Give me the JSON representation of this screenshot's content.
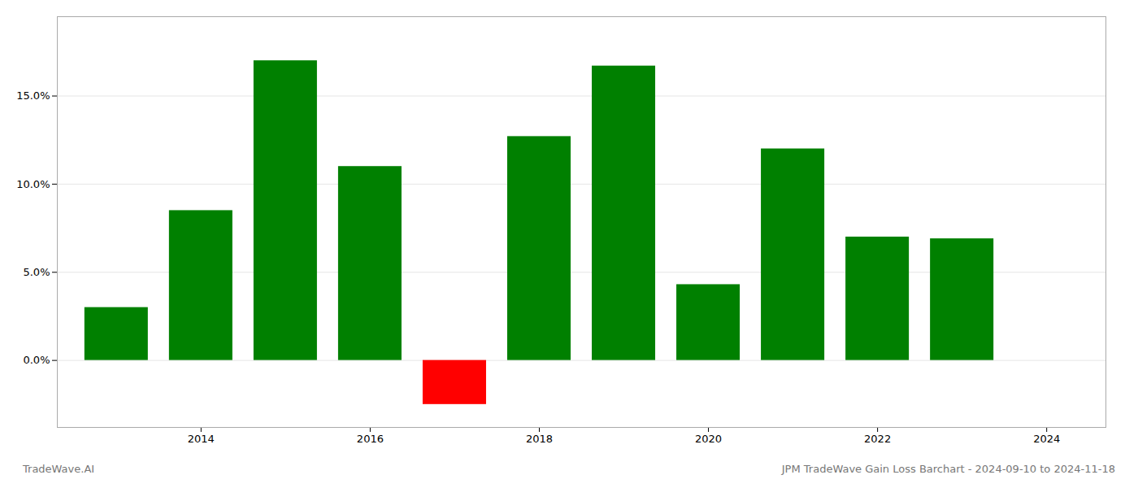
{
  "chart_data": {
    "type": "bar",
    "x": [
      2013,
      2014,
      2015,
      2016,
      2017,
      2018,
      2019,
      2020,
      2021,
      2022,
      2023
    ],
    "values": [
      3.0,
      8.5,
      17.0,
      11.0,
      -2.5,
      12.7,
      16.7,
      4.3,
      12.0,
      7.0,
      6.9
    ],
    "colors": [
      "#008000",
      "#008000",
      "#008000",
      "#008000",
      "#ff0000",
      "#008000",
      "#008000",
      "#008000",
      "#008000",
      "#008000",
      "#008000"
    ],
    "xlim": [
      2012.3,
      2024.7
    ],
    "xticks": [
      2014,
      2016,
      2018,
      2020,
      2022,
      2024
    ],
    "ylim": [
      -3.8,
      19.5
    ],
    "yticks": [
      {
        "value": 0,
        "label": "0.0%"
      },
      {
        "value": 5,
        "label": "5.0%"
      },
      {
        "value": 10,
        "label": "10.0%"
      },
      {
        "value": 15,
        "label": "15.0%"
      }
    ],
    "grid": true,
    "annotations": [
      "TradeWave.AI",
      "JPM TradeWave Gain Loss Barchart - 2024-09-10 to 2024-11-18"
    ]
  }
}
